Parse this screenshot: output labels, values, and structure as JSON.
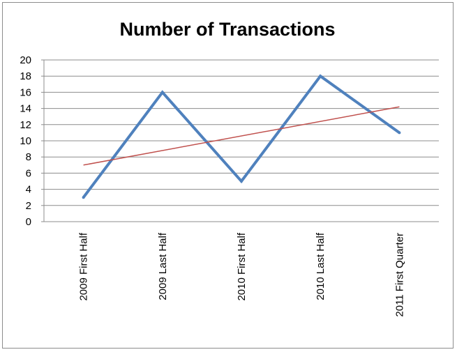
{
  "chart_data": {
    "type": "line",
    "title": "Number of Transactions",
    "xlabel": "",
    "ylabel": "",
    "categories": [
      "2009 First Half",
      "2009 Last Half",
      "2010 First Half",
      "2010 Last Half",
      "2011 First Quarter"
    ],
    "series": [
      {
        "values": [
          3,
          16,
          5,
          18,
          11
        ],
        "color": "#4f81bd"
      }
    ],
    "trendline": {
      "type": "linear",
      "start": 7.0,
      "end": 14.2,
      "color": "#c0504d"
    },
    "ylim": [
      0,
      20
    ],
    "yticks": [
      0,
      2,
      4,
      6,
      8,
      10,
      12,
      14,
      16,
      18,
      20
    ],
    "grid": true,
    "legend": "none"
  }
}
